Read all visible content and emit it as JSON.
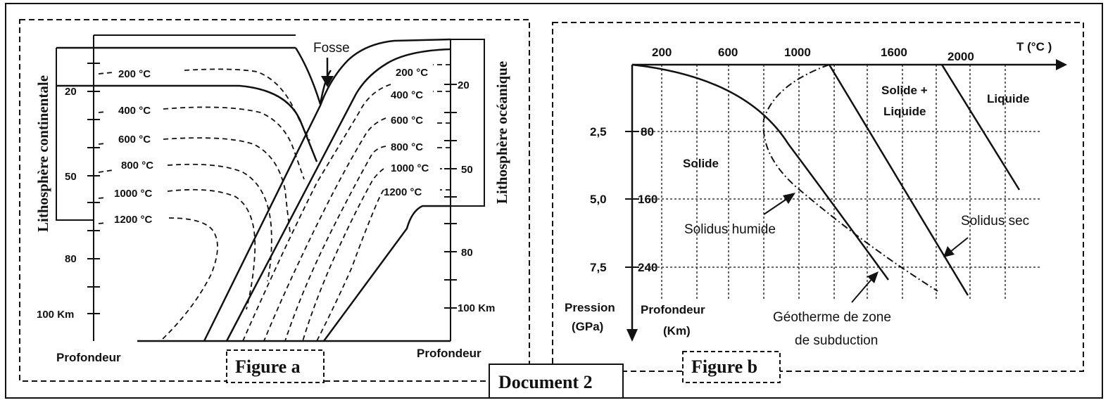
{
  "document_title": "Document 2",
  "figure_a": {
    "caption": "Figure a",
    "fosse_label": "Fosse",
    "left_side_label": "Lithosphère continentale",
    "right_side_label": "Lithosphère océanique",
    "left_depth_ticks": [
      "20",
      "50",
      "80",
      "100 Km"
    ],
    "right_depth_ticks": [
      "20",
      "50",
      "80",
      "100 Km"
    ],
    "left_axis_label": "Profondeur",
    "right_axis_label": "Profondeur",
    "left_isotherms": [
      "200 °C",
      "400 °C",
      "600 °C",
      "800 °C",
      "1000 °C",
      "1200 °C"
    ],
    "right_isotherms": [
      "200 °C",
      "400 °C",
      "600 °C",
      "800 °C",
      "1000 °C",
      "1200 °C"
    ]
  },
  "figure_b": {
    "caption": "Figure b",
    "x_axis_title": "T (°C )",
    "x_ticks": [
      "200",
      "600",
      "1000",
      "1600",
      "2000"
    ],
    "y_pressure_ticks": [
      "2,5",
      "5,0",
      "7,5"
    ],
    "y_depth_ticks": [
      "80",
      "160",
      "240"
    ],
    "y_pressure_label_line1": "Pression",
    "y_pressure_label_line2": "(GPa)",
    "y_depth_label_line1": "Profondeur",
    "y_depth_label_line2": "(Km)",
    "region_solide": "Solide",
    "region_solide_liquide_line1": "Solide +",
    "region_solide_liquide_line2": "Liquide",
    "region_liquide": "Liquide",
    "label_solidus_humide": "Solidus humide",
    "label_solidus_sec": "Solidus sec",
    "label_geotherme_line1": "Géotherme de zone",
    "label_geotherme_line2": "de subduction"
  }
}
